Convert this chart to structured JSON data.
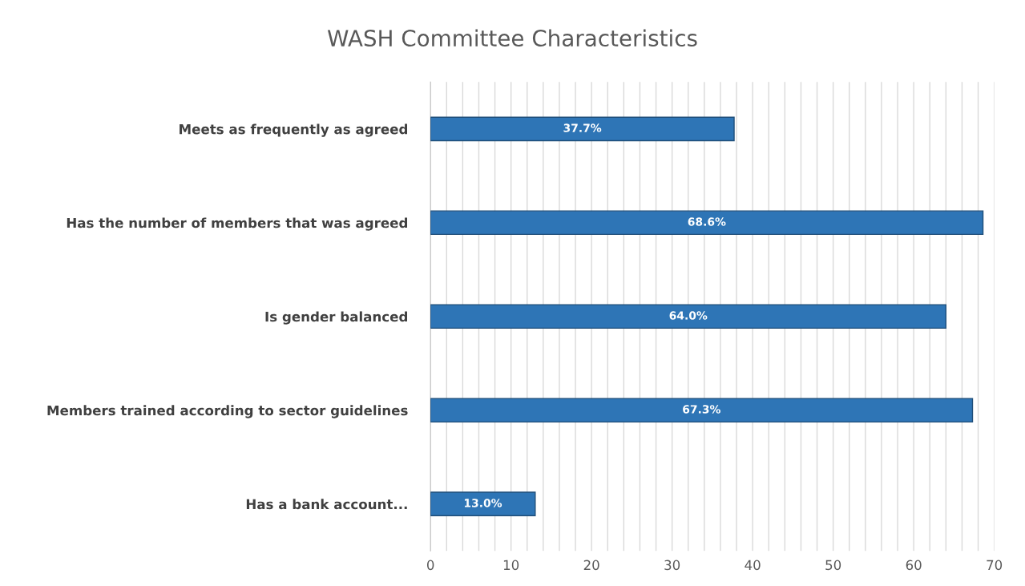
{
  "chart_data": {
    "type": "bar",
    "orientation": "horizontal",
    "title": "WASH Committee Characteristics",
    "categories": [
      "Meets as frequently as agreed",
      "Has the number of members that was agreed",
      "Is gender balanced",
      "Members trained according to sector guidelines",
      "Has a bank account..."
    ],
    "values": [
      37.7,
      68.6,
      64.0,
      67.3,
      13.0
    ],
    "value_labels": [
      "37.7%",
      "68.6%",
      "64.0%",
      "67.3%",
      "13.0%"
    ],
    "color": "#2e75b6",
    "xlim": [
      0,
      70
    ],
    "xticks": [
      0,
      {
        "value": 2,
        "label": null
      },
      {
        "value": 4,
        "label": null
      },
      {
        "value": 6,
        "label": null
      },
      {
        "value": 8,
        "label": null
      },
      10,
      {
        "value": 12,
        "label": null
      },
      {
        "value": 14,
        "label": null
      },
      {
        "value": 16,
        "label": null
      },
      {
        "value": 18,
        "label": null
      },
      20,
      {
        "value": 22,
        "label": null
      },
      {
        "value": 24,
        "label": null
      },
      {
        "value": 26,
        "label": null
      },
      {
        "value": 28,
        "label": null
      },
      30,
      {
        "value": 32,
        "label": null
      },
      {
        "value": 34,
        "label": null
      },
      {
        "value": 36,
        "label": null
      },
      {
        "value": 38,
        "label": null
      },
      40,
      {
        "value": 42,
        "label": null
      },
      {
        "value": 44,
        "label": null
      },
      {
        "value": 46,
        "label": null
      },
      {
        "value": 48,
        "label": null
      },
      50,
      {
        "value": 52,
        "label": null
      },
      {
        "value": 54,
        "label": null
      },
      {
        "value": 56,
        "label": null
      },
      {
        "value": 58,
        "label": null
      },
      60,
      {
        "value": 62,
        "label": null
      },
      {
        "value": 64,
        "label": null
      },
      {
        "value": 66,
        "label": null
      },
      {
        "value": 68,
        "label": null
      },
      70
    ],
    "grid": "x"
  }
}
